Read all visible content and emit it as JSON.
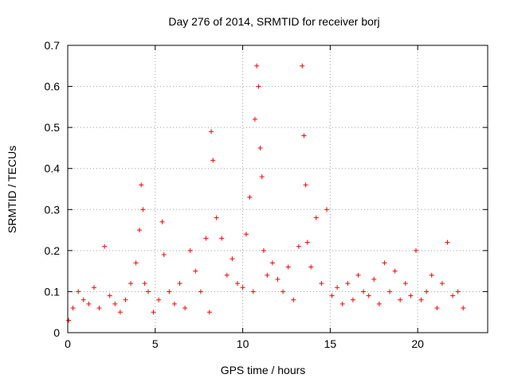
{
  "chart_data": {
    "type": "scatter",
    "title": "Day 276 of 2014, SRMTID for receiver borj",
    "xlabel": "GPS time / hours",
    "ylabel": "SRMTID / TECUs",
    "xlim": [
      0,
      24
    ],
    "ylim": [
      0,
      0.7
    ],
    "xticks": [
      "0",
      "5",
      "10",
      "15",
      "20"
    ],
    "yticks": [
      "0",
      "0.1",
      "0.2",
      "0.3",
      "0.4",
      "0.5",
      "0.6",
      "0.7"
    ],
    "grid": true,
    "marker": "+",
    "colors": {
      "series": "#ff0000",
      "axes": "#000000",
      "grid": "#a0a0a0"
    },
    "series": [
      {
        "name": "SRMTID",
        "x": [
          0.05,
          0.3,
          0.6,
          0.9,
          1.2,
          1.5,
          1.8,
          2.1,
          2.4,
          2.7,
          3.0,
          3.3,
          3.6,
          3.9,
          4.1,
          4.2,
          4.3,
          4.4,
          4.6,
          4.9,
          5.2,
          5.4,
          5.5,
          5.8,
          6.1,
          6.4,
          6.7,
          7.0,
          7.3,
          7.6,
          7.9,
          8.1,
          8.2,
          8.3,
          8.5,
          8.8,
          9.1,
          9.4,
          9.7,
          10.0,
          10.2,
          10.4,
          10.6,
          10.7,
          10.8,
          10.9,
          11.0,
          11.1,
          11.2,
          11.4,
          11.7,
          12.0,
          12.3,
          12.6,
          12.9,
          13.2,
          13.4,
          13.5,
          13.6,
          13.7,
          13.9,
          14.2,
          14.5,
          14.8,
          15.1,
          15.4,
          15.7,
          16.0,
          16.3,
          16.6,
          16.9,
          17.2,
          17.5,
          17.8,
          18.1,
          18.4,
          18.7,
          19.0,
          19.3,
          19.6,
          19.9,
          20.2,
          20.5,
          20.8,
          21.1,
          21.4,
          21.7,
          22.0,
          22.3,
          22.6
        ],
        "y": [
          0.03,
          0.06,
          0.1,
          0.08,
          0.07,
          0.11,
          0.06,
          0.21,
          0.09,
          0.07,
          0.05,
          0.08,
          0.12,
          0.17,
          0.25,
          0.36,
          0.3,
          0.12,
          0.1,
          0.05,
          0.08,
          0.27,
          0.19,
          0.1,
          0.07,
          0.12,
          0.06,
          0.2,
          0.15,
          0.1,
          0.23,
          0.05,
          0.49,
          0.42,
          0.28,
          0.23,
          0.14,
          0.18,
          0.12,
          0.11,
          0.24,
          0.33,
          0.1,
          0.52,
          0.65,
          0.6,
          0.45,
          0.38,
          0.2,
          0.14,
          0.17,
          0.13,
          0.1,
          0.16,
          0.08,
          0.21,
          0.65,
          0.48,
          0.36,
          0.22,
          0.16,
          0.28,
          0.12,
          0.3,
          0.09,
          0.11,
          0.07,
          0.12,
          0.08,
          0.14,
          0.1,
          0.09,
          0.13,
          0.07,
          0.17,
          0.1,
          0.15,
          0.08,
          0.12,
          0.09,
          0.2,
          0.08,
          0.1,
          0.14,
          0.06,
          0.12,
          0.22,
          0.09,
          0.1,
          0.06
        ]
      }
    ]
  }
}
